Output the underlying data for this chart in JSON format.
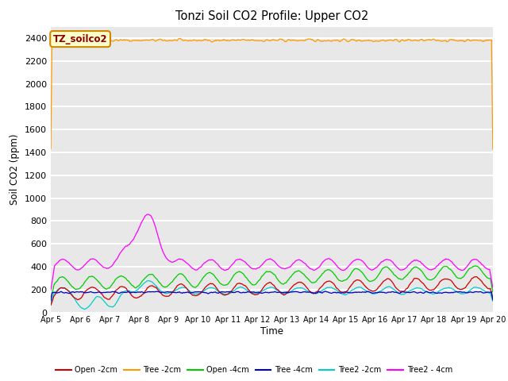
{
  "title": "Tonzi Soil CO2 Profile: Upper CO2",
  "ylabel": "Soil CO2 (ppm)",
  "xlabel": "Time",
  "annotation_label": "TZ_soilco2",
  "annotation_color": "#8b0000",
  "annotation_bg": "#ffffcc",
  "annotation_border": "#cc8800",
  "ylim": [
    0,
    2500
  ],
  "yticks": [
    0,
    200,
    400,
    600,
    800,
    1000,
    1200,
    1400,
    1600,
    1800,
    2000,
    2200,
    2400
  ],
  "series": {
    "Open_2cm": {
      "color": "#cc0000",
      "label": "Open -2cm"
    },
    "Tree_2cm": {
      "color": "#ff9900",
      "label": "Tree -2cm"
    },
    "Open_4cm": {
      "color": "#00cc00",
      "label": "Open -4cm"
    },
    "Tree_4cm": {
      "color": "#0000cc",
      "label": "Tree -4cm"
    },
    "Tree2_2cm": {
      "color": "#00cccc",
      "label": "Tree2 -2cm"
    },
    "Tree2_4cm": {
      "color": "#ff00ff",
      "label": "Tree2 - 4cm"
    }
  },
  "background_color": "#e8e8e8",
  "grid_color": "#ffffff",
  "fig_bg": "#ffffff",
  "xtick_labels": [
    "Apr 5",
    "Apr 6",
    "Apr 7",
    "Apr 8",
    "Apr 9",
    "Apr 10",
    "Apr 11",
    "Apr 12",
    "Apr 13",
    "Apr 14",
    "Apr 15",
    "Apr 16",
    "Apr 17",
    "Apr 18",
    "Apr 19",
    "Apr 20"
  ]
}
